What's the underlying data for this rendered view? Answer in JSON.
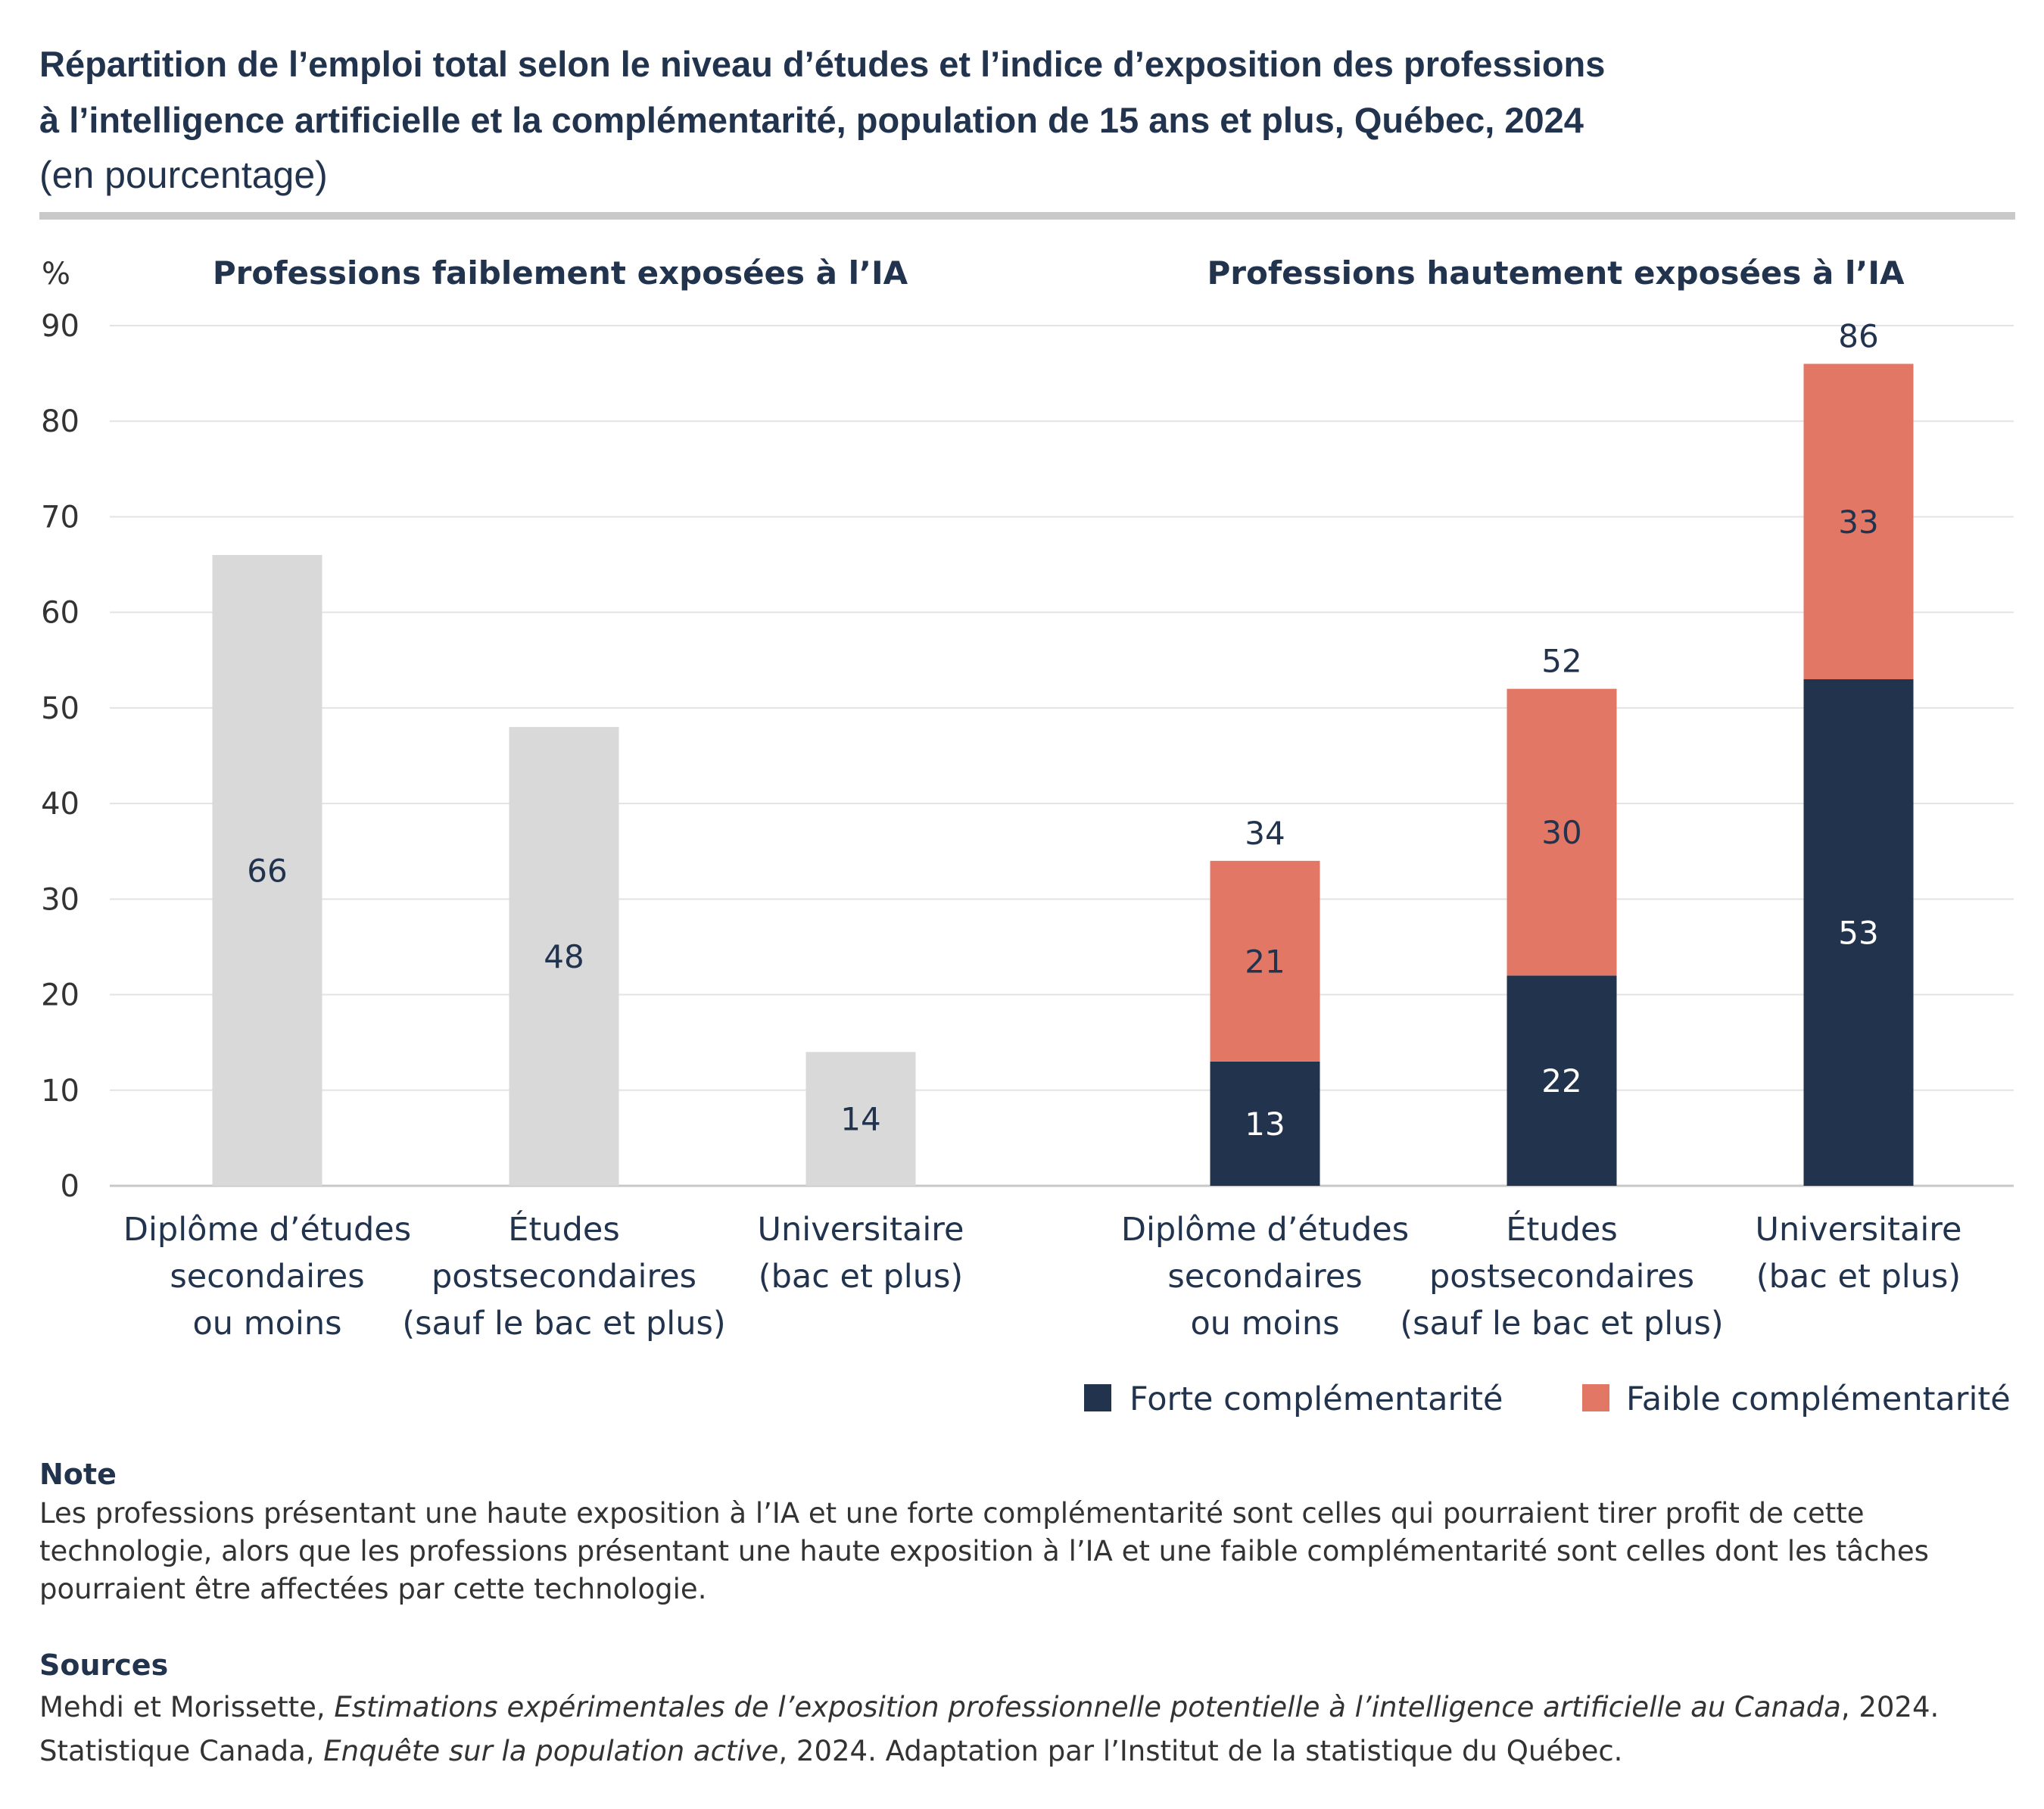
{
  "title": {
    "line1": "Répartition de l’emploi total selon le niveau d’études et l’indice d’exposition des professions",
    "line2": "à l’intelligence artificielle et la complémentarité, population de 15 ans et plus, Québec, 2024",
    "subtitle": "(en pourcentage)"
  },
  "chart_data": {
    "type": "bar",
    "title": "Répartition de l’emploi total selon le niveau d’études et l’indice d’exposition des professions à l’intelligence artificielle et la complémentarité, population de 15 ans et plus, Québec, 2024",
    "ylabel": "%",
    "ylim": [
      0,
      90
    ],
    "yticks": [
      0,
      10,
      20,
      30,
      40,
      50,
      60,
      70,
      80,
      90
    ],
    "grid": true,
    "legend_position": "bottom-right",
    "groups": [
      {
        "title": "Professions faiblement exposées à l’IA",
        "categories": [
          {
            "label": [
              "Diplôme d’études",
              "secondaires",
              "ou moins"
            ],
            "value": 66,
            "value_label": "66"
          },
          {
            "label": [
              "Études",
              "postsecondaires",
              "(sauf le bac et plus)"
            ],
            "value": 48,
            "value_label": "48"
          },
          {
            "label": [
              "Universitaire",
              "(bac et plus)"
            ],
            "value": 14,
            "value_label": "14"
          }
        ]
      },
      {
        "title": "Professions hautement exposées à l’IA",
        "stacked": true,
        "categories": [
          {
            "label": [
              "Diplôme d’études",
              "secondaires",
              "ou moins"
            ],
            "forte": 13,
            "faible": 21,
            "total": 34,
            "forte_label": "13",
            "faible_label": "21",
            "total_label": "34"
          },
          {
            "label": [
              "Études",
              "postsecondaires",
              "(sauf le bac et plus)"
            ],
            "forte": 22,
            "faible": 30,
            "total": 52,
            "forte_label": "22",
            "faible_label": "30",
            "total_label": "52"
          },
          {
            "label": [
              "Universitaire",
              "(bac et plus)"
            ],
            "forte": 53,
            "faible": 33,
            "total": 86,
            "forte_label": "53",
            "faible_label": "33",
            "total_label": "86"
          }
        ]
      }
    ],
    "series": [
      {
        "name": "Forte complémentarité",
        "color": "#22334e"
      },
      {
        "name": "Faible complémentarité",
        "color": "#e37765"
      }
    ],
    "low_exposure_color": "#d9d9d9"
  },
  "note": {
    "heading": "Note",
    "lines": [
      "Les professions présentant une haute exposition à l’IA et une forte complémentarité sont celles qui pourraient tirer profit de cette",
      "technologie, alors que les professions présentant une haute exposition à l’IA et une faible complémentarité sont celles dont les tâches",
      "pourraient être affectées par cette technologie."
    ]
  },
  "sources": {
    "heading": "Sources",
    "line1_pre": "Mehdi et Morissette, ",
    "line1_italic": "Estimations expérimentales de l’exposition professionnelle potentielle à l’intelligence artificielle au Canada",
    "line1_post": ", 2024.",
    "line2_pre": "Statistique Canada, ",
    "line2_italic": "Enquête sur la population active",
    "line2_post": ", 2024. Adaptation par l’Institut de la statistique du Québec."
  }
}
